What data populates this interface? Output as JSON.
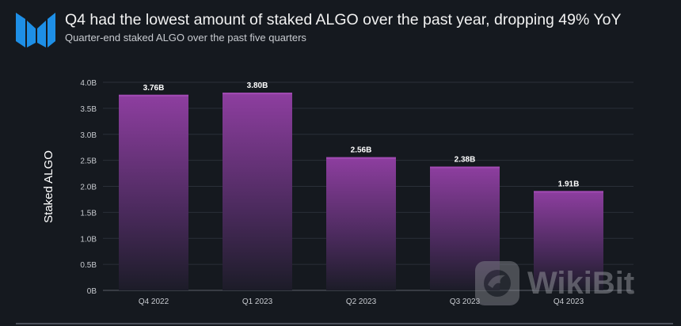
{
  "header": {
    "title": "Q4 had the lowest amount of staked ALGO over the past year, dropping 49% YoY",
    "subtitle": "Quarter-end staked ALGO over the past five quarters",
    "logo_color": "#1e8fe6"
  },
  "watermark": {
    "text": "WikiBit"
  },
  "chart_data": {
    "type": "bar",
    "title": "Q4 had the lowest amount of staked ALGO over the past year, dropping 49% YoY",
    "subtitle": "Quarter-end staked ALGO over the past five quarters",
    "xlabel": "",
    "ylabel": "Staked ALGO",
    "categories": [
      "Q4 2022",
      "Q1 2023",
      "Q2 2023",
      "Q3 2023",
      "Q4 2023"
    ],
    "values": [
      3.76,
      3.8,
      2.56,
      2.38,
      1.91
    ],
    "data_labels": [
      "3.76B",
      "3.80B",
      "2.56B",
      "2.38B",
      "1.91B"
    ],
    "ylim": [
      0,
      4.0
    ],
    "yticks": [
      0,
      0.5,
      1.0,
      1.5,
      2.0,
      2.5,
      3.0,
      3.5,
      4.0
    ],
    "ytick_labels": [
      "0B",
      "0.5B",
      "1.0B",
      "1.5B",
      "2.0B",
      "2.5B",
      "3.0B",
      "3.5B",
      "4.0B"
    ],
    "grid": true,
    "bar_color": "#8e3ea0"
  }
}
